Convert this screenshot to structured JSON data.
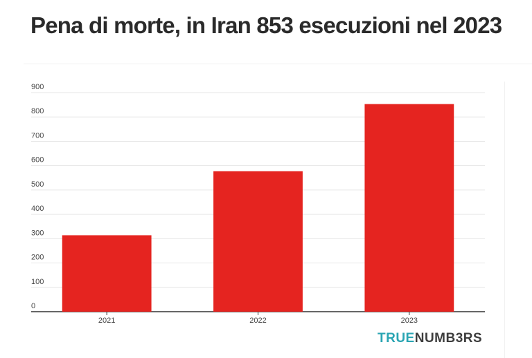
{
  "title": "Pena di morte, in Iran 853 esecuzioni nel 2023",
  "brand": {
    "part1": "TRUE",
    "part2": "NUMB3RS"
  },
  "colors": {
    "bar": "#e52420",
    "grid": "#e6e6e6",
    "axis": "#333333",
    "brand_accent": "#2aa5b3",
    "brand_dark": "#3d3d3d"
  },
  "chart_data": {
    "type": "bar",
    "categories": [
      "2021",
      "2022",
      "2023"
    ],
    "values": [
      314,
      577,
      853
    ],
    "yticks": [
      0,
      100,
      200,
      300,
      400,
      500,
      600,
      700,
      800,
      900
    ],
    "ylim": [
      0,
      900
    ],
    "grid": true,
    "legend": "none"
  }
}
